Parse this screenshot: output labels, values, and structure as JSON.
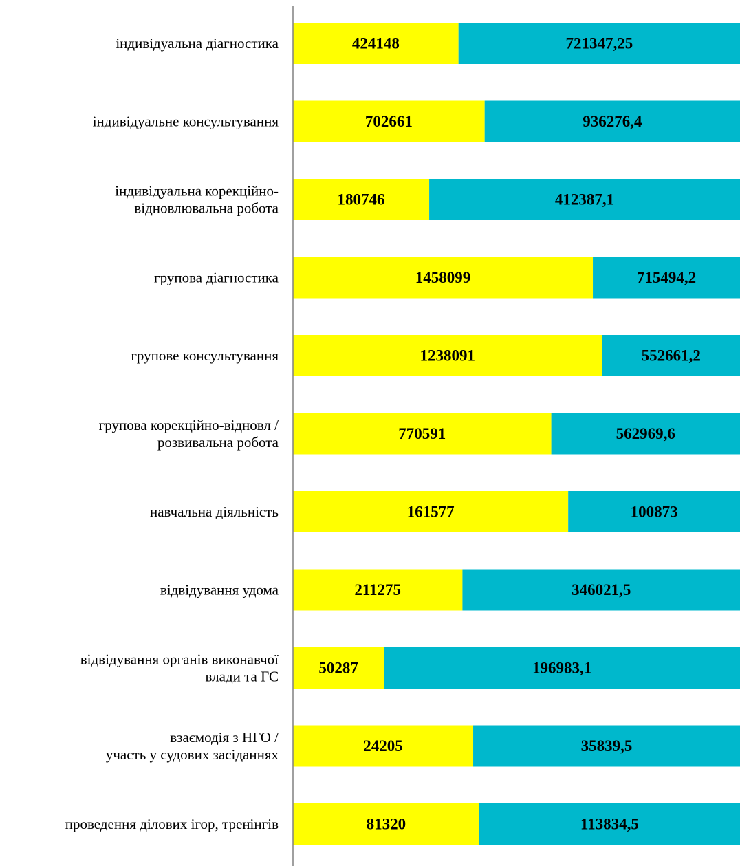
{
  "chart_data": {
    "type": "bar",
    "orientation": "horizontal",
    "stacking": "percent",
    "categories": [
      [
        "індивідуальна діагностика"
      ],
      [
        "індивідуальне консультування"
      ],
      [
        "індивідуальна корекційно-",
        "відновлювальна робота"
      ],
      [
        "групова діагностика"
      ],
      [
        "групове консультування"
      ],
      [
        "групова корекційно-відновл /",
        "розвивальна робота"
      ],
      [
        "навчальна діяльність"
      ],
      [
        "відвідування удома"
      ],
      [
        "відвідування органів виконавчої",
        "влади та ГС"
      ],
      [
        "взаємодія з НГО /",
        "участь у судових засіданнях"
      ],
      [
        "проведення ділових ігор, тренінгів"
      ]
    ],
    "series": [
      {
        "color": "#ffff00",
        "values": [
          424148,
          702661,
          180746,
          1458099,
          1238091,
          770591,
          161577,
          211275,
          50287,
          24205,
          81320
        ],
        "labels": [
          "424148",
          "702661",
          "180746",
          "1458099",
          "1238091",
          "770591",
          "161577",
          "211275",
          "50287",
          "24205",
          "81320"
        ]
      },
      {
        "color": "#00b8cc",
        "values": [
          721347.25,
          936276.4,
          412387.1,
          715494.2,
          552661.2,
          562969.6,
          100873,
          346021.5,
          196983.1,
          35839.5,
          113834.5
        ],
        "labels": [
          "721347,25",
          "936276,4",
          "412387,1",
          "715494,2",
          "552661,2",
          "562969,6",
          "100873",
          "346021,5",
          "196983,1",
          "35839,5",
          "113834,5"
        ]
      }
    ],
    "legend": "none",
    "grid": false,
    "title": "",
    "xlabel": "",
    "ylabel": ""
  },
  "colors": {
    "axis": "#808080",
    "text": "#000000"
  }
}
